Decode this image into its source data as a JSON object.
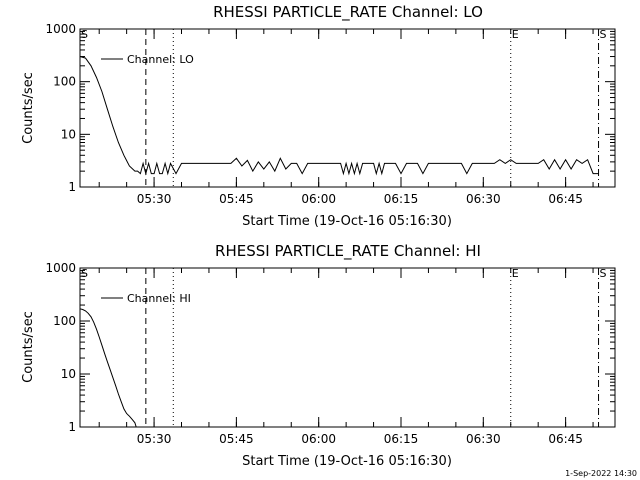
{
  "footer": {
    "timestamp": "1-Sep-2022 14:30"
  },
  "chart_data": [
    {
      "type": "line",
      "title": "RHESSI PARTICLE_RATE Channel: LO",
      "xlabel": "Start Time (19-Oct-16 05:16:30)",
      "ylabel": "Counts/sec",
      "xlim": [
        "05:16:30",
        "06:54:00"
      ],
      "ylim": [
        1,
        1000
      ],
      "yscale": "log",
      "xticks": [
        "05:30",
        "05:45",
        "06:00",
        "06:15",
        "06:30",
        "06:45"
      ],
      "yticks": [
        "1",
        "10",
        "100",
        "1000"
      ],
      "legend": {
        "position": "top-left",
        "entries": [
          "Channel: LO"
        ]
      },
      "markers": [
        {
          "label": "S",
          "time": "05:16:30",
          "style": "none"
        },
        {
          "label": "",
          "time": "05:28:30",
          "style": "dashed"
        },
        {
          "label": "",
          "time": "05:33:30",
          "style": "dotted"
        },
        {
          "label": "E",
          "time": "06:35:00",
          "style": "dotted"
        },
        {
          "label": "S",
          "time": "06:51:00",
          "style": "dashdot"
        }
      ],
      "series": [
        {
          "name": "Channel: LO",
          "x": [
            "05:16:30",
            "05:17:30",
            "05:18:30",
            "05:19:30",
            "05:20:30",
            "05:21:30",
            "05:22:30",
            "05:23:30",
            "05:24:30",
            "05:25:30",
            "05:26:30",
            "05:27:00",
            "05:27:30",
            "05:28:00",
            "05:28:30",
            "05:29:00",
            "05:29:30",
            "05:30:00",
            "05:30:30",
            "05:31:00",
            "05:31:30",
            "05:32:00",
            "05:32:30",
            "05:33:00",
            "05:34:00",
            "05:35:00",
            "05:36:00",
            "05:37:00",
            "05:38:00",
            "05:39:00",
            "05:40:00",
            "05:41:00",
            "05:42:00",
            "05:43:00",
            "05:44:00",
            "05:45:00",
            "05:46:00",
            "05:47:00",
            "05:48:00",
            "05:49:00",
            "05:50:00",
            "05:51:00",
            "05:52:00",
            "05:53:00",
            "05:54:00",
            "05:55:00",
            "05:56:00",
            "05:57:00",
            "05:58:00",
            "05:59:00",
            "06:00:00",
            "06:02:00",
            "06:04:00",
            "06:04:30",
            "06:05:00",
            "06:05:30",
            "06:06:00",
            "06:06:30",
            "06:07:00",
            "06:07:30",
            "06:08:00",
            "06:09:00",
            "06:10:00",
            "06:10:30",
            "06:11:00",
            "06:11:30",
            "06:12:00",
            "06:13:00",
            "06:14:00",
            "06:15:00",
            "06:16:00",
            "06:17:00",
            "06:18:00",
            "06:19:00",
            "06:20:00",
            "06:21:00",
            "06:22:00",
            "06:24:00",
            "06:26:00",
            "06:27:00",
            "06:28:00",
            "06:30:00",
            "06:32:00",
            "06:33:00",
            "06:34:00",
            "06:35:00",
            "06:36:00",
            "06:37:00",
            "06:38:00",
            "06:40:00",
            "06:41:00",
            "06:42:00",
            "06:43:00",
            "06:44:00",
            "06:45:00",
            "06:46:00",
            "06:47:00",
            "06:48:00",
            "06:49:00",
            "06:50:00",
            "06:51:00"
          ],
          "values": [
            300,
            280,
            200,
            120,
            65,
            30,
            14,
            7,
            4,
            2.5,
            2,
            2,
            1.8,
            2.8,
            1.8,
            2.8,
            1.8,
            1.8,
            2.8,
            1.8,
            1.8,
            2.8,
            1.8,
            2.8,
            1.8,
            2.8,
            2.8,
            2.8,
            2.8,
            2.8,
            2.8,
            2.8,
            2.8,
            2.8,
            2.8,
            3.5,
            2.5,
            3.2,
            2,
            3,
            2.2,
            3,
            2,
            3.5,
            2.2,
            2.8,
            2.8,
            1.8,
            2.8,
            2.8,
            2.8,
            2.8,
            2.8,
            1.8,
            2.8,
            1.8,
            2.8,
            1.8,
            2.8,
            1.8,
            2.8,
            2.8,
            2.8,
            1.8,
            2.8,
            1.8,
            2.8,
            2.8,
            2.8,
            1.8,
            2.8,
            2.8,
            2.8,
            1.8,
            2.8,
            2.8,
            2.8,
            2.8,
            2.8,
            1.8,
            2.8,
            2.8,
            2.8,
            3.3,
            2.8,
            3.3,
            2.8,
            2.8,
            2.8,
            2.8,
            3.3,
            2.2,
            3.3,
            2.2,
            3.3,
            2.2,
            3.3,
            2.8,
            3.3,
            1.8,
            1.8
          ]
        }
      ]
    },
    {
      "type": "line",
      "title": "RHESSI PARTICLE_RATE Channel: HI",
      "xlabel": "Start Time (19-Oct-16 05:16:30)",
      "ylabel": "Counts/sec",
      "xlim": [
        "05:16:30",
        "06:54:00"
      ],
      "ylim": [
        1,
        1000
      ],
      "yscale": "log",
      "xticks": [
        "05:30",
        "05:45",
        "06:00",
        "06:15",
        "06:30",
        "06:45"
      ],
      "yticks": [
        "1",
        "10",
        "100",
        "1000"
      ],
      "legend": {
        "position": "top-left",
        "entries": [
          "Channel: HI"
        ]
      },
      "markers": [
        {
          "label": "S",
          "time": "05:16:30",
          "style": "none"
        },
        {
          "label": "",
          "time": "05:28:30",
          "style": "dashed"
        },
        {
          "label": "",
          "time": "05:33:30",
          "style": "dotted"
        },
        {
          "label": "E",
          "time": "06:35:00",
          "style": "dotted"
        },
        {
          "label": "S",
          "time": "06:51:00",
          "style": "dashdot"
        }
      ],
      "series": [
        {
          "name": "Channel: HI",
          "x": [
            "05:16:30",
            "05:17:00",
            "05:17:30",
            "05:18:00",
            "05:18:30",
            "05:19:00",
            "05:19:30",
            "05:20:00",
            "05:20:30",
            "05:21:00",
            "05:21:30",
            "05:22:00",
            "05:22:30",
            "05:23:00",
            "05:23:30",
            "05:24:00",
            "05:24:30",
            "05:25:00",
            "05:25:30",
            "05:26:00",
            "05:26:30",
            "05:26:45"
          ],
          "values": [
            170,
            165,
            155,
            140,
            120,
            95,
            70,
            50,
            35,
            24,
            17,
            12,
            8.5,
            6,
            4.2,
            3,
            2.2,
            1.8,
            1.6,
            1.4,
            1.2,
            1
          ]
        }
      ]
    }
  ]
}
